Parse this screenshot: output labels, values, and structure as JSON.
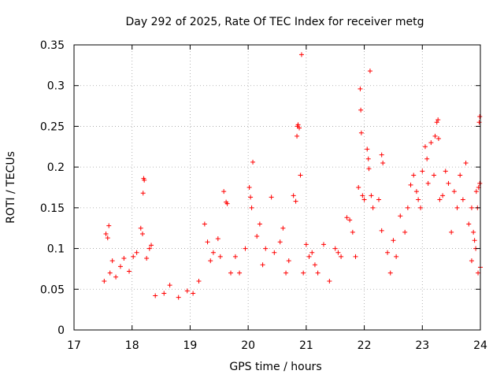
{
  "chart_data": {
    "type": "scatter",
    "title": "Day 292 of 2025, Rate Of TEC Index for receiver metg",
    "xlabel": "GPS time / hours",
    "ylabel": "ROTI / TECUs",
    "xlim": [
      17,
      24
    ],
    "ylim": [
      0,
      0.35
    ],
    "xticks": [
      17,
      18,
      19,
      20,
      21,
      22,
      23,
      24
    ],
    "xtick_labels": [
      "17",
      "18",
      "19",
      "20",
      "21",
      "22",
      "23",
      "24"
    ],
    "yticks": [
      0,
      0.05,
      0.1,
      0.15,
      0.2,
      0.25,
      0.3,
      0.35
    ],
    "ytick_labels": [
      "0",
      "0.05",
      "0.1",
      "0.15",
      "0.2",
      "0.25",
      "0.3",
      "0.35"
    ],
    "grid": true,
    "marker": "+",
    "color": "#ff0000",
    "series": [
      {
        "name": "ROTI",
        "points": [
          [
            17.52,
            0.06
          ],
          [
            17.55,
            0.118
          ],
          [
            17.58,
            0.113
          ],
          [
            17.6,
            0.128
          ],
          [
            17.62,
            0.07
          ],
          [
            17.66,
            0.085
          ],
          [
            17.72,
            0.065
          ],
          [
            17.8,
            0.078
          ],
          [
            17.86,
            0.088
          ],
          [
            17.95,
            0.072
          ],
          [
            18.02,
            0.09
          ],
          [
            18.08,
            0.095
          ],
          [
            18.15,
            0.125
          ],
          [
            18.18,
            0.118
          ],
          [
            18.2,
            0.186
          ],
          [
            18.21,
            0.184
          ],
          [
            18.19,
            0.168
          ],
          [
            18.25,
            0.088
          ],
          [
            18.3,
            0.1
          ],
          [
            18.33,
            0.104
          ],
          [
            18.4,
            0.042
          ],
          [
            18.55,
            0.045
          ],
          [
            18.65,
            0.055
          ],
          [
            18.8,
            0.04
          ],
          [
            18.95,
            0.048
          ],
          [
            19.05,
            0.045
          ],
          [
            19.15,
            0.06
          ],
          [
            19.25,
            0.13
          ],
          [
            19.3,
            0.108
          ],
          [
            19.35,
            0.085
          ],
          [
            19.4,
            0.095
          ],
          [
            19.48,
            0.112
          ],
          [
            19.52,
            0.09
          ],
          [
            19.58,
            0.17
          ],
          [
            19.62,
            0.157
          ],
          [
            19.64,
            0.155
          ],
          [
            19.7,
            0.07
          ],
          [
            19.78,
            0.09
          ],
          [
            19.85,
            0.07
          ],
          [
            19.95,
            0.1
          ],
          [
            20.02,
            0.175
          ],
          [
            20.04,
            0.163
          ],
          [
            20.06,
            0.15
          ],
          [
            20.08,
            0.206
          ],
          [
            20.15,
            0.115
          ],
          [
            20.2,
            0.13
          ],
          [
            20.25,
            0.08
          ],
          [
            20.3,
            0.1
          ],
          [
            20.4,
            0.163
          ],
          [
            20.45,
            0.095
          ],
          [
            20.55,
            0.108
          ],
          [
            20.6,
            0.125
          ],
          [
            20.65,
            0.07
          ],
          [
            20.7,
            0.085
          ],
          [
            20.78,
            0.165
          ],
          [
            20.82,
            0.158
          ],
          [
            20.85,
            0.25
          ],
          [
            20.86,
            0.252
          ],
          [
            20.88,
            0.248
          ],
          [
            20.84,
            0.238
          ],
          [
            20.92,
            0.338
          ],
          [
            20.9,
            0.19
          ],
          [
            20.95,
            0.07
          ],
          [
            21.0,
            0.105
          ],
          [
            21.05,
            0.09
          ],
          [
            21.1,
            0.095
          ],
          [
            21.15,
            0.08
          ],
          [
            21.2,
            0.07
          ],
          [
            21.3,
            0.105
          ],
          [
            21.4,
            0.06
          ],
          [
            21.5,
            0.1
          ],
          [
            21.55,
            0.095
          ],
          [
            21.6,
            0.09
          ],
          [
            21.7,
            0.138
          ],
          [
            21.75,
            0.135
          ],
          [
            21.8,
            0.12
          ],
          [
            21.85,
            0.09
          ],
          [
            21.9,
            0.175
          ],
          [
            21.93,
            0.296
          ],
          [
            21.94,
            0.27
          ],
          [
            21.95,
            0.242
          ],
          [
            21.97,
            0.165
          ],
          [
            22.0,
            0.16
          ],
          [
            22.05,
            0.222
          ],
          [
            22.07,
            0.21
          ],
          [
            22.08,
            0.198
          ],
          [
            22.1,
            0.318
          ],
          [
            22.12,
            0.165
          ],
          [
            22.15,
            0.15
          ],
          [
            22.25,
            0.16
          ],
          [
            22.3,
            0.215
          ],
          [
            22.32,
            0.205
          ],
          [
            22.3,
            0.122
          ],
          [
            22.4,
            0.095
          ],
          [
            22.45,
            0.07
          ],
          [
            22.5,
            0.11
          ],
          [
            22.55,
            0.09
          ],
          [
            22.62,
            0.14
          ],
          [
            22.7,
            0.12
          ],
          [
            22.75,
            0.15
          ],
          [
            22.8,
            0.178
          ],
          [
            22.85,
            0.19
          ],
          [
            22.9,
            0.17
          ],
          [
            22.93,
            0.16
          ],
          [
            22.97,
            0.15
          ],
          [
            23.0,
            0.195
          ],
          [
            23.05,
            0.225
          ],
          [
            23.08,
            0.21
          ],
          [
            23.1,
            0.18
          ],
          [
            23.15,
            0.23
          ],
          [
            23.2,
            0.19
          ],
          [
            23.22,
            0.238
          ],
          [
            23.25,
            0.255
          ],
          [
            23.27,
            0.258
          ],
          [
            23.28,
            0.235
          ],
          [
            23.3,
            0.16
          ],
          [
            23.35,
            0.165
          ],
          [
            23.4,
            0.195
          ],
          [
            23.45,
            0.18
          ],
          [
            23.5,
            0.12
          ],
          [
            23.55,
            0.17
          ],
          [
            23.6,
            0.15
          ],
          [
            23.65,
            0.19
          ],
          [
            23.7,
            0.16
          ],
          [
            23.75,
            0.205
          ],
          [
            23.8,
            0.13
          ],
          [
            23.85,
            0.15
          ],
          [
            23.88,
            0.12
          ],
          [
            23.9,
            0.11
          ],
          [
            23.93,
            0.17
          ],
          [
            23.95,
            0.15
          ],
          [
            23.97,
            0.175
          ],
          [
            23.98,
            0.255
          ],
          [
            23.99,
            0.262
          ],
          [
            23.99,
            0.18
          ],
          [
            24.0,
            0.077
          ],
          [
            23.96,
            0.07
          ],
          [
            23.92,
            0.1
          ],
          [
            23.85,
            0.085
          ]
        ]
      }
    ]
  }
}
